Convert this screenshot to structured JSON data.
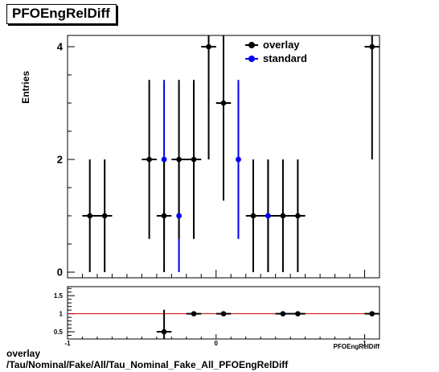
{
  "title": "PFOEngRelDiff",
  "caption_line1": "overlay",
  "caption_line2": "/Tau/Nominal/Fake/All/Tau_Nominal_Fake_All_PFOEngRelDiff",
  "colors": {
    "overlay": "#000000",
    "standard": "#0000ee",
    "ratio_line": "#cc0000",
    "frame": "#000000"
  },
  "chart_data": [
    {
      "type": "scatter",
      "panel": "main",
      "ylabel": "Entries",
      "xlim": [
        -1.0,
        1.1
      ],
      "ylim": [
        -0.1,
        4.2
      ],
      "yticks": [
        0,
        2,
        4
      ],
      "ytick_labels": [
        "0",
        "2",
        "4"
      ],
      "legend": "top-right",
      "series": [
        {
          "name": "overlay",
          "x": [
            -0.85,
            -0.75,
            -0.45,
            -0.35,
            -0.25,
            -0.15,
            -0.05,
            0.05,
            0.25,
            0.35,
            0.45,
            0.55,
            1.05
          ],
          "y": [
            1,
            1,
            2,
            1,
            2,
            2,
            4,
            3,
            1,
            1,
            1,
            1,
            4
          ],
          "yerr": [
            1,
            1,
            1.41,
            1,
            1.41,
            1.41,
            2,
            1.73,
            1,
            1,
            1,
            1,
            2
          ]
        },
        {
          "name": "standard",
          "x": [
            -0.35,
            -0.25,
            0.15,
            0.35
          ],
          "y": [
            2,
            1,
            2,
            1
          ],
          "yerr": [
            1.41,
            1,
            1.41,
            1
          ]
        }
      ]
    },
    {
      "type": "scatter",
      "panel": "ratio",
      "xlabel": "PFOEngRelDiff",
      "xlim": [
        -1.0,
        1.1
      ],
      "ylim": [
        0.3,
        1.75
      ],
      "yticks": [
        0.5,
        1,
        1.5
      ],
      "ytick_labels": [
        "0.5",
        "1",
        "1.5"
      ],
      "xticks": [
        -1,
        0,
        1
      ],
      "xtick_labels": [
        "-1",
        "0",
        "1"
      ],
      "reference_line": 1,
      "series": [
        {
          "x": [
            -0.35,
            -0.15,
            0.05,
            0.45,
            0.55,
            1.05
          ],
          "y": [
            0.5,
            1,
            1,
            1,
            1,
            1
          ],
          "yerr": [
            0.61,
            0,
            0,
            0,
            0,
            0
          ]
        }
      ]
    }
  ]
}
